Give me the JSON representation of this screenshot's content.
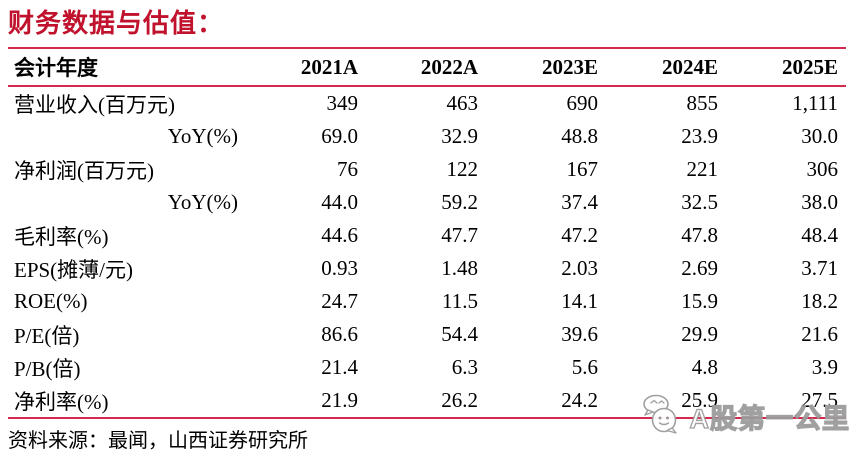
{
  "title": "财务数据与估值：",
  "table": {
    "header": [
      "会计年度",
      "2021A",
      "2022A",
      "2023E",
      "2024E",
      "2025E"
    ],
    "rows": [
      {
        "label": "营业收入(百万元)",
        "indent": false,
        "values": [
          "349",
          "463",
          "690",
          "855",
          "1,111"
        ]
      },
      {
        "label": "YoY(%)",
        "indent": true,
        "values": [
          "69.0",
          "32.9",
          "48.8",
          "23.9",
          "30.0"
        ]
      },
      {
        "label": "净利润(百万元)",
        "indent": false,
        "values": [
          "76",
          "122",
          "167",
          "221",
          "306"
        ]
      },
      {
        "label": "YoY(%)",
        "indent": true,
        "values": [
          "44.0",
          "59.2",
          "37.4",
          "32.5",
          "38.0"
        ]
      },
      {
        "label": "毛利率(%)",
        "indent": false,
        "values": [
          "44.6",
          "47.7",
          "47.2",
          "47.8",
          "48.4"
        ]
      },
      {
        "label": "EPS(摊薄/元)",
        "indent": false,
        "values": [
          "0.93",
          "1.48",
          "2.03",
          "2.69",
          "3.71"
        ]
      },
      {
        "label": "ROE(%)",
        "indent": false,
        "values": [
          "24.7",
          "11.5",
          "14.1",
          "15.9",
          "18.2"
        ]
      },
      {
        "label": "P/E(倍)",
        "indent": false,
        "values": [
          "86.6",
          "54.4",
          "39.6",
          "29.9",
          "21.6"
        ]
      },
      {
        "label": "P/B(倍)",
        "indent": false,
        "values": [
          "21.4",
          "6.3",
          "5.6",
          "4.8",
          "3.9"
        ]
      },
      {
        "label": "净利率(%)",
        "indent": false,
        "values": [
          "21.9",
          "26.2",
          "24.2",
          "25.9",
          "27.5"
        ]
      }
    ]
  },
  "source": "资料来源：最闻，山西证券研究所",
  "watermark": {
    "text": "A股第一公里",
    "icon": "wechat-icon"
  },
  "colors": {
    "accent_red": "#c0122d",
    "rule_red": "#d42a4e",
    "watermark_gray": "#9b9b9b"
  }
}
